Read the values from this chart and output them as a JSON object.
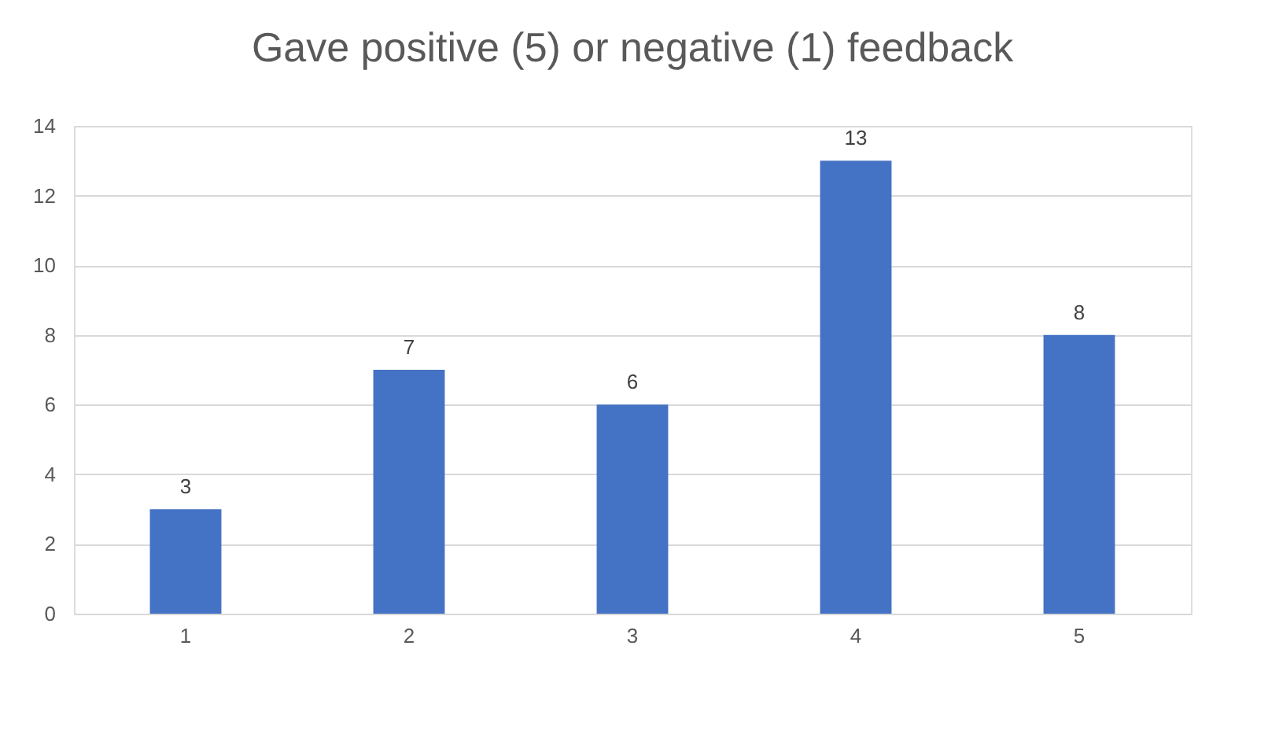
{
  "chart_data": {
    "type": "bar",
    "title": "Gave positive (5) or negative (1) feedback",
    "categories": [
      "1",
      "2",
      "3",
      "4",
      "5"
    ],
    "values": [
      3,
      7,
      6,
      13,
      8
    ],
    "color": "#4472c4",
    "ylim": [
      0,
      14
    ],
    "yticks": [
      0,
      2,
      4,
      6,
      8,
      10,
      12,
      14
    ],
    "grid": "y",
    "data_labels": true
  }
}
